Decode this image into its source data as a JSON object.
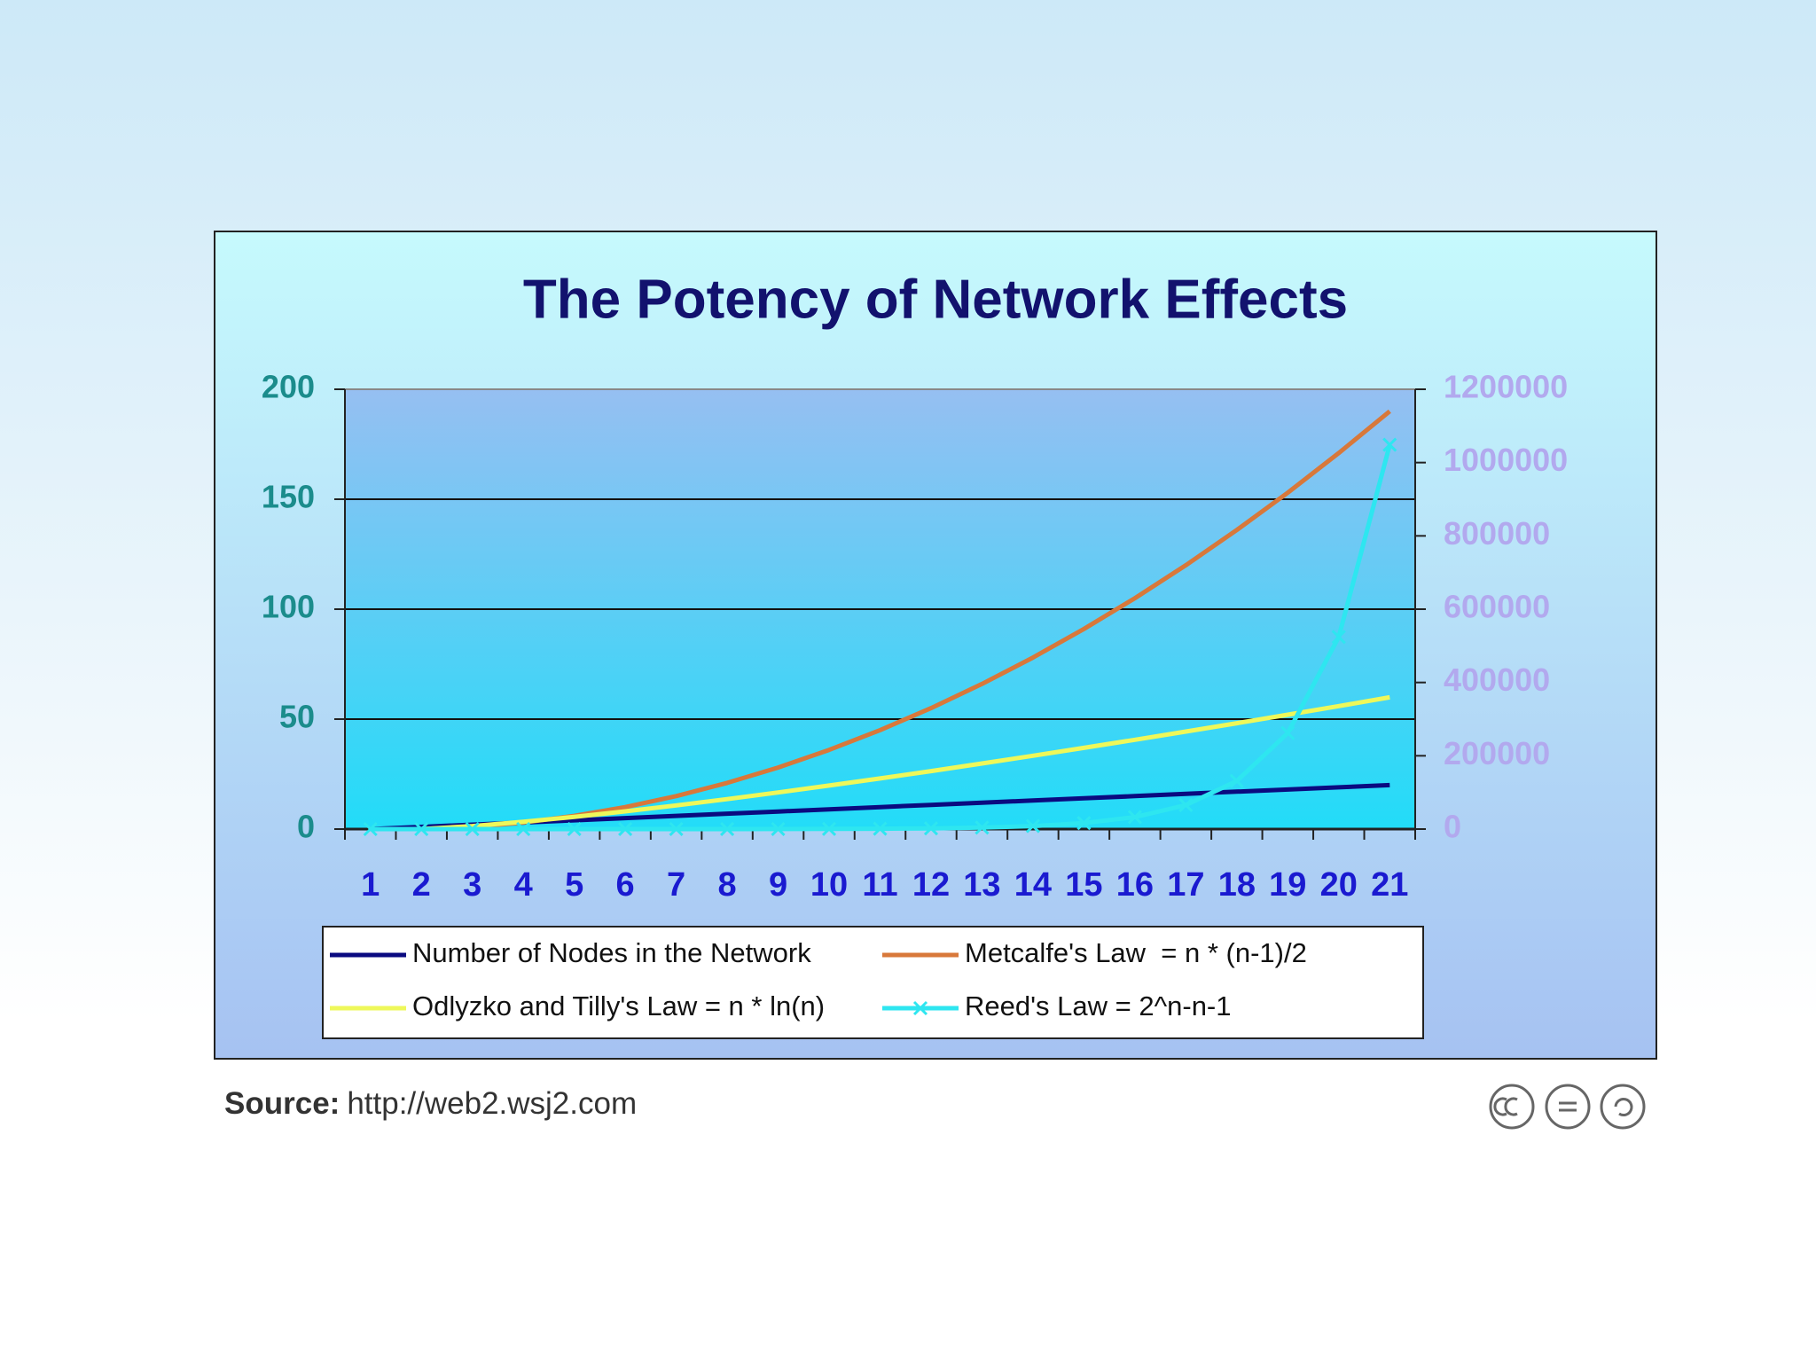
{
  "chart_data": {
    "type": "line",
    "title": "The Potency of Network Effects",
    "categories": [
      "1",
      "2",
      "3",
      "4",
      "5",
      "6",
      "7",
      "8",
      "9",
      "10",
      "11",
      "12",
      "13",
      "14",
      "15",
      "16",
      "17",
      "18",
      "19",
      "20",
      "21"
    ],
    "series": [
      {
        "name": "Number of Nodes in the Network",
        "color": "#0a0a80",
        "values": [
          0,
          1,
          2,
          3,
          4,
          5,
          6,
          7,
          8,
          9,
          10,
          11,
          12,
          13,
          14,
          15,
          16,
          17,
          18,
          19,
          20
        ]
      },
      {
        "name": "Metcalfe's Law  = n * (n-1)/2",
        "color": "#d8783a",
        "values": [
          0,
          0,
          1,
          3,
          6,
          10,
          15,
          21,
          28,
          36,
          45,
          55,
          66,
          78,
          91,
          105,
          120,
          136,
          153,
          171,
          190
        ]
      },
      {
        "name": "Odlyzko and Tilly's Law = n * ln(n)",
        "color": "#eef85a",
        "values": [
          0,
          0,
          1.39,
          3.3,
          5.55,
          8.05,
          10.75,
          13.62,
          16.64,
          19.78,
          23.03,
          26.38,
          29.82,
          33.34,
          36.95,
          40.62,
          44.36,
          48.16,
          52.03,
          55.94,
          59.91
        ]
      },
      {
        "name": "Reed's Law = 2^n-n-1",
        "color": "#2ee6f0",
        "axis": "y2",
        "marker": "x",
        "values": [
          0,
          0,
          1,
          4,
          11,
          26,
          57,
          120,
          247,
          502,
          1013,
          2036,
          4083,
          8178,
          16369,
          32752,
          65519,
          131054,
          262125,
          524268,
          1048555
        ]
      }
    ],
    "ylim": [
      0,
      200
    ],
    "yticks": [
      0,
      50,
      100,
      150,
      200
    ],
    "y2lim": [
      0,
      1200000
    ],
    "y2ticks": [
      0,
      200000,
      400000,
      600000,
      800000,
      1000000,
      1200000
    ],
    "grid": true,
    "legend": "bottom",
    "source_label": "Source:",
    "source": "http://web2.wsj2.com"
  }
}
